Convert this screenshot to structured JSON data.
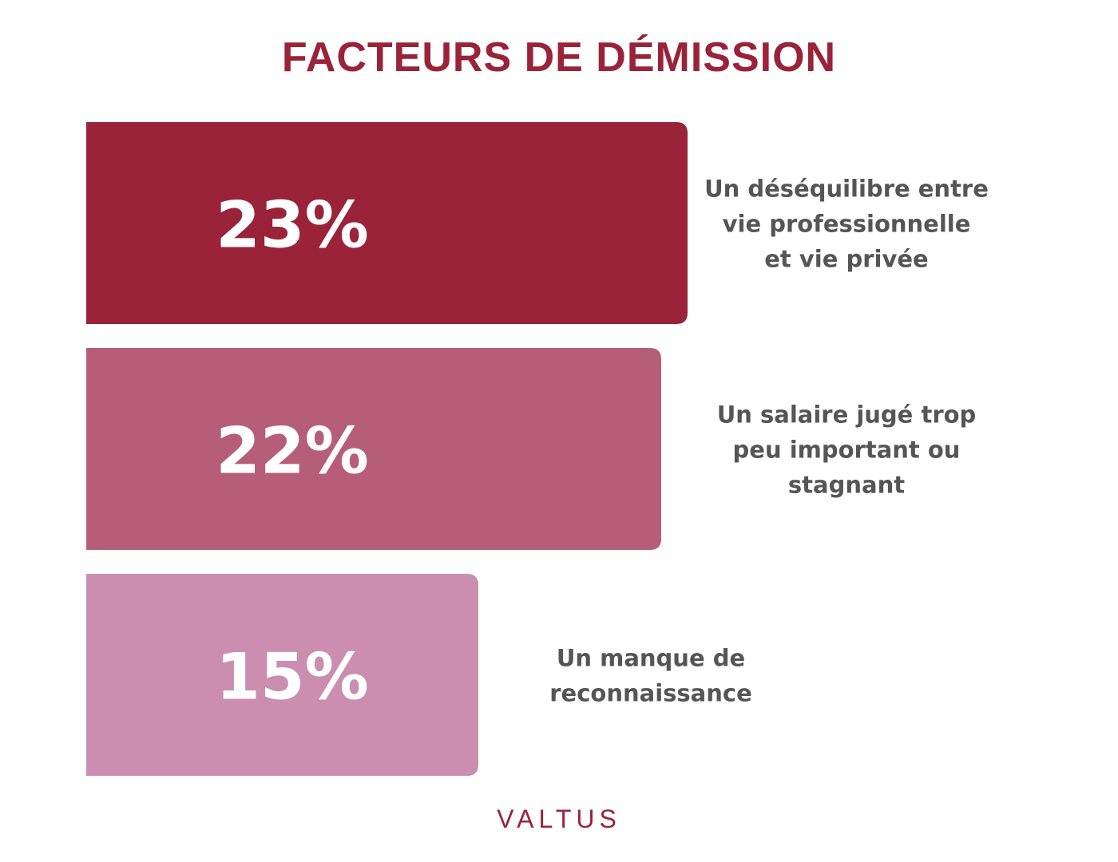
{
  "chart_data": {
    "type": "bar",
    "title": "FACTEURS DE DÉMISSION",
    "orientation": "horizontal",
    "categories": [
      "Un déséquilibre entre vie professionnelle et vie privée",
      "Un salaire jugé trop peu important ou stagnant",
      "Un manque de reconnaissance"
    ],
    "category_lines": [
      [
        "Un déséquilibre entre",
        "vie professionnelle",
        "et vie privée"
      ],
      [
        "Un salaire jugé trop",
        "peu important ou",
        "stagnant"
      ],
      [
        "Un manque de",
        "reconnaissance"
      ]
    ],
    "values": [
      23,
      22,
      15
    ],
    "value_labels": [
      "23%",
      "22%",
      "15%"
    ],
    "unit": "%",
    "colors": [
      "#9a2339",
      "#b65e79",
      "#cb8db0"
    ],
    "label_color": "#555555"
  },
  "brand": "VALTUS"
}
